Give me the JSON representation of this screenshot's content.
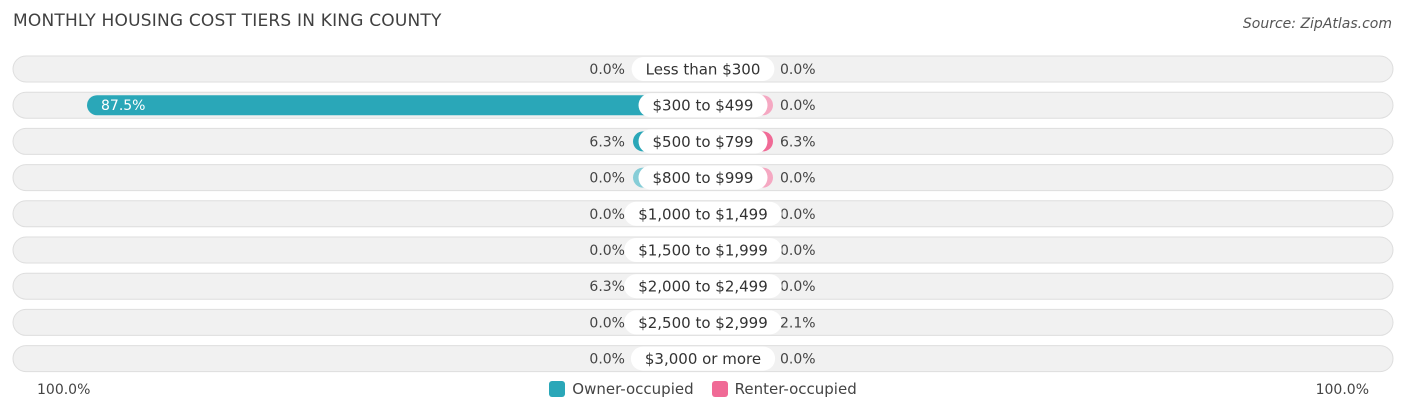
{
  "chart_data": {
    "type": "bar",
    "orientation": "horizontal-diverging",
    "title": "MONTHLY HOUSING COST TIERS IN KING COUNTY",
    "source": "Source: ZipAtlas.com",
    "categories": [
      "Less than $300",
      "$300 to $499",
      "$500 to $799",
      "$800 to $999",
      "$1,000 to $1,499",
      "$1,500 to $1,999",
      "$2,000 to $2,499",
      "$2,500 to $2,999",
      "$3,000 or more"
    ],
    "series": [
      {
        "name": "Owner-occupied",
        "color": "#2aa7b8",
        "light_color": "#86cdd7",
        "values": [
          0.0,
          87.5,
          6.3,
          0.0,
          0.0,
          0.0,
          6.3,
          0.0,
          0.0
        ],
        "labels": [
          "0.0%",
          "87.5%",
          "6.3%",
          "0.0%",
          "0.0%",
          "0.0%",
          "6.3%",
          "0.0%",
          "0.0%"
        ]
      },
      {
        "name": "Renter-occupied",
        "color": "#f06a96",
        "light_color": "#f5a8c2",
        "values": [
          0.0,
          0.0,
          6.3,
          0.0,
          0.0,
          0.0,
          0.0,
          2.1,
          0.0
        ],
        "labels": [
          "0.0%",
          "0.0%",
          "6.3%",
          "0.0%",
          "0.0%",
          "0.0%",
          "0.0%",
          "2.1%",
          "0.0%"
        ]
      }
    ],
    "xlim": [
      -100,
      100
    ],
    "axis_left_label": "100.0%",
    "axis_right_label": "100.0%",
    "legend_position": "bottom-center",
    "grid": false
  }
}
